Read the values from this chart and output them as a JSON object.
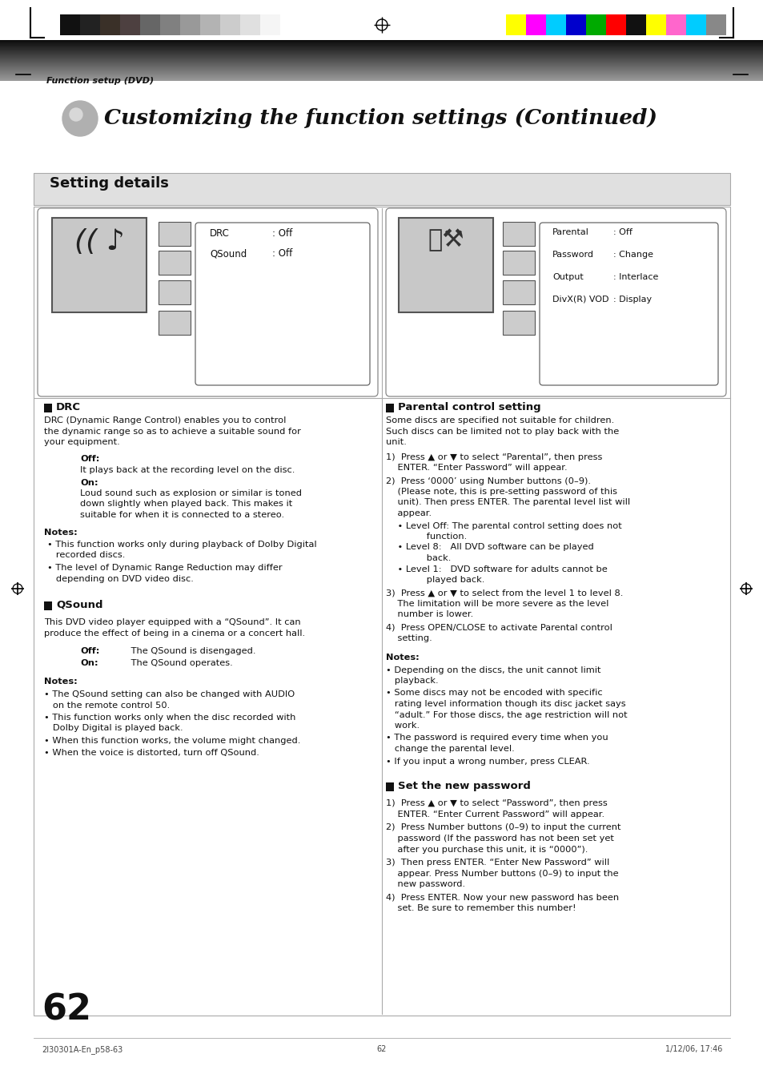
{
  "page_bg": "#ffffff",
  "header_text": "Function setup (DVD)",
  "title_text": "Customizing the function settings (Continued)",
  "section_title": "Setting details",
  "color_bars_left": [
    "#111111",
    "#222222",
    "#3a3028",
    "#4d4040",
    "#666666",
    "#808080",
    "#999999",
    "#b3b3b3",
    "#cccccc",
    "#e0e0e0",
    "#f5f5f5"
  ],
  "color_bars_right": [
    "#ffff00",
    "#ff00ff",
    "#00ccff",
    "#0000cc",
    "#00aa00",
    "#ff0000",
    "#111111",
    "#ffff00",
    "#ff66cc",
    "#00ccff",
    "#888888"
  ],
  "footer_left": "2I30301A-En_p58-63",
  "footer_center": "62",
  "footer_right": "1/12/06, 17:46",
  "page_number": "62"
}
